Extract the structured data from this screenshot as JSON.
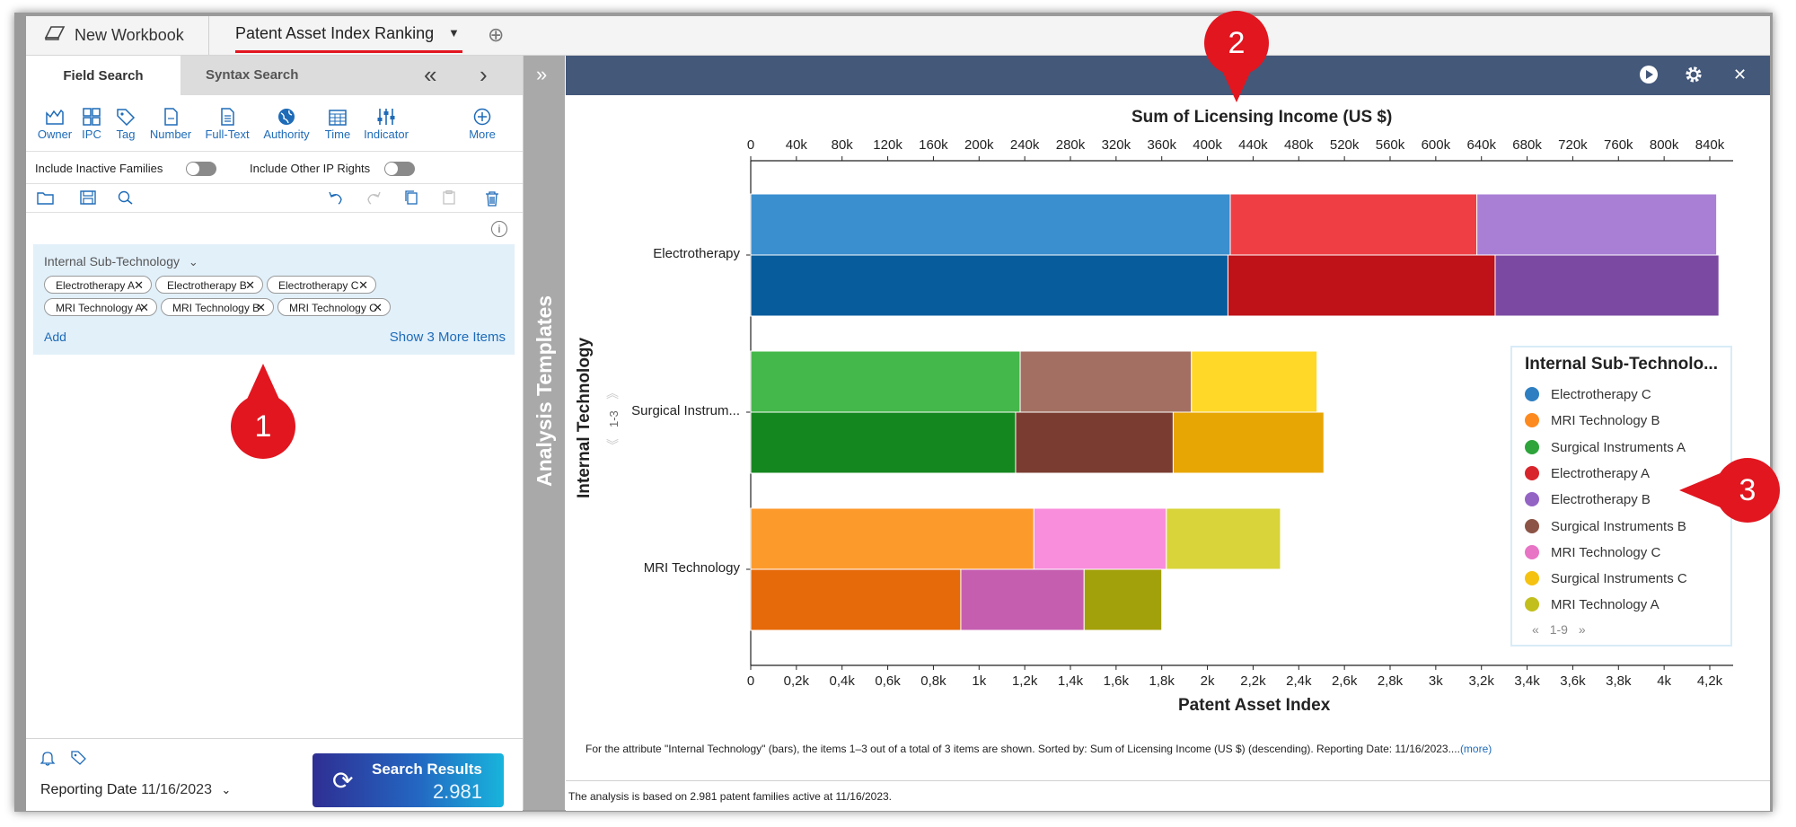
{
  "workbook": {
    "label": "New Workbook",
    "icon": "notebook-icon"
  },
  "active_tab": {
    "label": "Patent Asset Index Ranking"
  },
  "left": {
    "tabs": [
      {
        "label": "Field Search"
      },
      {
        "label": "Syntax Search"
      }
    ],
    "tools": [
      {
        "label": "Owner",
        "icon": "bar-chart-icon"
      },
      {
        "label": "IPC",
        "icon": "grid-icon"
      },
      {
        "label": "Tag",
        "icon": "tag-icon"
      },
      {
        "label": "Number",
        "icon": "document-number-icon"
      },
      {
        "label": "Full-Text",
        "icon": "document-text-icon"
      },
      {
        "label": "Authority",
        "icon": "globe-icon"
      },
      {
        "label": "Time",
        "icon": "calendar-icon"
      },
      {
        "label": "Indicator",
        "icon": "sliders-icon"
      },
      {
        "label": "More",
        "icon": "plus-circle-icon"
      }
    ],
    "toggles": [
      {
        "label": "Include Inactive Families",
        "on": false
      },
      {
        "label": "Include Other IP Rights",
        "on": false
      }
    ],
    "filter": {
      "title": "Internal Sub-Technology",
      "chips": [
        "Electrotherapy A",
        "Electrotherapy B",
        "Electrotherapy C",
        "MRI Technology A",
        "MRI Technology B",
        "MRI Technology C"
      ],
      "add_label": "Add",
      "more_label": "Show 3 More Items"
    },
    "reporting": {
      "label": "Reporting Date",
      "value": "11/16/2023"
    },
    "search": {
      "label": "Search Results",
      "count": "2.981"
    }
  },
  "strip": {
    "label": "Analysis Templates"
  },
  "chart_data": {
    "type": "bar",
    "orientation": "horizontal",
    "title": "Sum of Licensing Income (US $)",
    "xlabel": "Patent Asset Index",
    "ylabel": "Internal Technology",
    "range_label": "1-3",
    "categories": [
      "Electrotherapy",
      "Surgical Instrum...",
      "MRI Technology"
    ],
    "top_axis": {
      "label": "Sum of Licensing Income (US $)",
      "min": 0,
      "max": 840000,
      "ticks": [
        "0",
        "40k",
        "80k",
        "120k",
        "160k",
        "200k",
        "240k",
        "280k",
        "320k",
        "360k",
        "400k",
        "440k",
        "480k",
        "520k",
        "560k",
        "600k",
        "640k",
        "680k",
        "720k",
        "760k",
        "800k",
        "840k"
      ]
    },
    "bottom_axis": {
      "label": "Patent Asset Index",
      "min": 0,
      "max": 4200,
      "ticks": [
        "0",
        "0,2k",
        "0,4k",
        "0,6k",
        "0,8k",
        "1k",
        "1,2k",
        "1,4k",
        "1,6k",
        "1,8k",
        "2k",
        "2,2k",
        "2,4k",
        "2,6k",
        "2,8k",
        "3k",
        "3,2k",
        "3,4k",
        "3,6k",
        "3,8k",
        "4k",
        "4,2k"
      ]
    },
    "licensing_income": [
      {
        "category": "Electrotherapy",
        "segments": [
          {
            "name": "Electrotherapy C",
            "value": 420000,
            "color": "#3a8fcf"
          },
          {
            "name": "Electrotherapy A",
            "value": 216000,
            "color": "#ef3f44"
          },
          {
            "name": "Electrotherapy B",
            "value": 210000,
            "color": "#a87fd4"
          }
        ]
      },
      {
        "category": "Surgical Instrum...",
        "segments": [
          {
            "name": "Surgical Instruments A",
            "value": 236000,
            "color": "#44b84a"
          },
          {
            "name": "Surgical Instruments B",
            "value": 150000,
            "color": "#a36f62"
          },
          {
            "name": "Surgical Instruments C",
            "value": 110000,
            "color": "#ffd828"
          }
        ]
      },
      {
        "category": "MRI Technology",
        "segments": [
          {
            "name": "MRI Technology B",
            "value": 248000,
            "color": "#fd9a2c"
          },
          {
            "name": "MRI Technology C",
            "value": 116000,
            "color": "#f98edc"
          },
          {
            "name": "MRI Technology A",
            "value": 100000,
            "color": "#d8d43a"
          }
        ]
      }
    ],
    "patent_asset_index": [
      {
        "category": "Electrotherapy",
        "segments": [
          {
            "name": "Electrotherapy C",
            "value": 2090,
            "color": "#075c9c"
          },
          {
            "name": "Electrotherapy A",
            "value": 1170,
            "color": "#be1118"
          },
          {
            "name": "Electrotherapy B",
            "value": 980,
            "color": "#7b49a2"
          }
        ]
      },
      {
        "category": "Surgical Instrum...",
        "segments": [
          {
            "name": "Surgical Instruments A",
            "value": 1160,
            "color": "#15871f"
          },
          {
            "name": "Surgical Instruments B",
            "value": 690,
            "color": "#7a3c30"
          },
          {
            "name": "Surgical Instruments C",
            "value": 660,
            "color": "#e8a605"
          }
        ]
      },
      {
        "category": "MRI Technology",
        "segments": [
          {
            "name": "MRI Technology B",
            "value": 920,
            "color": "#e66a0a"
          },
          {
            "name": "MRI Technology C",
            "value": 540,
            "color": "#c65eb0"
          },
          {
            "name": "MRI Technology A",
            "value": 340,
            "color": "#a3a10b"
          }
        ]
      }
    ],
    "legend": {
      "title": "Internal Sub-Technolo...",
      "items": [
        {
          "name": "Electrotherapy C",
          "color": "#2e7fc1"
        },
        {
          "name": "MRI Technology B",
          "color": "#fd8a1f"
        },
        {
          "name": "Surgical Instruments A",
          "color": "#2ea43b"
        },
        {
          "name": "Electrotherapy A",
          "color": "#d8252c"
        },
        {
          "name": "Electrotherapy B",
          "color": "#9364c4"
        },
        {
          "name": "Surgical Instruments B",
          "color": "#8c5446"
        },
        {
          "name": "MRI Technology C",
          "color": "#e774c5"
        },
        {
          "name": "Surgical Instruments C",
          "color": "#f5c211"
        },
        {
          "name": "MRI Technology A",
          "color": "#c2bf1c"
        }
      ],
      "pager": "1-9",
      "placement": "right"
    }
  },
  "footnote": {
    "text": "For the attribute \"Internal Technology\" (bars), the items 1–3 out of a total of 3 items are shown. Sorted by: Sum of Licensing Income (US $) (descending). Reporting Date: 11/16/2023....",
    "more": "(more)"
  },
  "footer": {
    "text": "The analysis is based on 2.981 patent families active at 11/16/2023."
  },
  "markers": [
    "1",
    "2",
    "3"
  ],
  "colors": {
    "accent": "#e2161f",
    "link": "#1e6bb8",
    "header": "#44587a"
  }
}
